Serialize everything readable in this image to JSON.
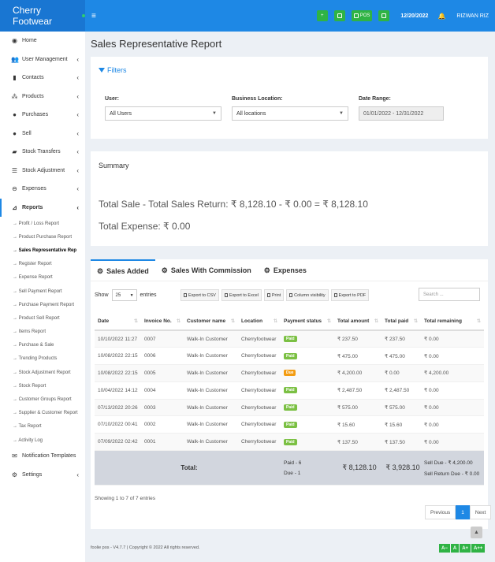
{
  "header": {
    "brand": "Cherry Footwear",
    "menu_icon": "≡",
    "pos_label": "POS",
    "date": "12/20/2022",
    "user": "RIZWAN RIZ"
  },
  "sidebar": {
    "items": [
      {
        "label": "Home",
        "icon": "dashboard-icon"
      },
      {
        "label": "User Management",
        "icon": "users-icon"
      },
      {
        "label": "Contacts",
        "icon": "address-book-icon"
      },
      {
        "label": "Products",
        "icon": "cubes-icon"
      },
      {
        "label": "Purchases",
        "icon": "arrow-circle-icon"
      },
      {
        "label": "Sell",
        "icon": "arrow-circle-up-icon"
      },
      {
        "label": "Stock Transfers",
        "icon": "truck-icon"
      },
      {
        "label": "Stock Adjustment",
        "icon": "database-icon"
      },
      {
        "label": "Expenses",
        "icon": "minus-circle-icon"
      },
      {
        "label": "Reports",
        "icon": "chart-icon"
      }
    ],
    "report_items": [
      "→ Profit / Loss Report",
      "→ Product Purchase Report",
      "→ Sales Representative Rep",
      "→ Register Report",
      "→ Expense Report",
      "→ Sell Payment Report",
      "→ Purchase Payment Report",
      "→ Product Sell Report",
      "→ Items Report",
      "→ Purchase & Sale",
      "→ Trending Products",
      "→ Stock Adjustment Report",
      "→ Stock Report",
      "→ Customer Groups Report",
      "→ Supplier & Customer Report",
      "→ Tax Report",
      "→ Activity Log"
    ],
    "bottom_items": [
      {
        "label": "Notification Templates",
        "icon": "envelope-icon"
      },
      {
        "label": "Settings",
        "icon": "cog-icon"
      }
    ]
  },
  "page": {
    "title": "Sales Representative Report"
  },
  "filters": {
    "title": "Filters",
    "user_label": "User:",
    "user_value": "All Users",
    "location_label": "Business Location:",
    "location_value": "All locations",
    "date_label": "Date Range:",
    "date_value": "01/01/2022 - 12/31/2022"
  },
  "summary": {
    "title": "Summary",
    "line1": "Total Sale - Total Sales Return: ₹ 8,128.10 - ₹ 0.00 = ₹ 8,128.10",
    "line2": "Total Expense: ₹ 0.00"
  },
  "tabs": [
    "Sales Added",
    "Sales With Commission",
    "Expenses"
  ],
  "table_controls": {
    "show": "Show",
    "length": "25",
    "entries": "entries",
    "exports": [
      "Export to CSV",
      "Export to Excel",
      "Print",
      "Column visibility",
      "Export to PDF"
    ],
    "search_placeholder": "Search ..."
  },
  "table": {
    "columns": [
      "Date",
      "Invoice No.",
      "Customer name",
      "Location",
      "Payment status",
      "Total amount",
      "Total paid",
      "Total remaining"
    ],
    "rows": [
      [
        "10/10/2022 11:27",
        "0007",
        "Walk-In Customer",
        "Cherryfootwear",
        "Paid",
        "₹ 237.50",
        "₹ 237.50",
        "₹ 0.00"
      ],
      [
        "10/08/2022 22:15",
        "0006",
        "Walk-In Customer",
        "Cherryfootwear",
        "Paid",
        "₹ 475.00",
        "₹ 475.00",
        "₹ 0.00"
      ],
      [
        "10/08/2022 22:15",
        "0005",
        "Walk-In Customer",
        "Cherryfootwear",
        "Due",
        "₹ 4,200.00",
        "₹ 0.00",
        "₹ 4,200.00"
      ],
      [
        "10/04/2022 14:12",
        "0004",
        "Walk-In Customer",
        "Cherryfootwear",
        "Paid",
        "₹ 2,487.50",
        "₹ 2,487.50",
        "₹ 0.00"
      ],
      [
        "07/13/2022 20:26",
        "0003",
        "Walk-In Customer",
        "Cherryfootwear",
        "Paid",
        "₹ 575.00",
        "₹ 575.00",
        "₹ 0.00"
      ],
      [
        "07/10/2022 00:41",
        "0002",
        "Walk-In Customer",
        "Cherryfootwear",
        "Paid",
        "₹ 15.60",
        "₹ 15.60",
        "₹ 0.00"
      ],
      [
        "07/09/2022 02:42",
        "0001",
        "Walk-In Customer",
        "Cherryfootwear",
        "Paid",
        "₹ 137.50",
        "₹ 137.50",
        "₹ 0.00"
      ]
    ],
    "total": {
      "label": "Total:",
      "paid": "Paid - 6",
      "due": "Due - 1",
      "amount": "₹ 8,128.10",
      "paid_amount": "₹ 3,928.10",
      "sell_due": "Sell Due - ₹ 4,200.00",
      "sell_return_due": "Sell Return Due - ₹ 0.00"
    }
  },
  "pagination": {
    "info": "Showing 1 to 7 of 7 entries",
    "previous": "Previous",
    "current": "1",
    "next": "Next"
  },
  "footer": {
    "text": "foolie pos - V4.7.7 | Copyright © 2022 All rights reserved."
  },
  "font_controls": [
    "A−",
    "A",
    "A+",
    "A++"
  ]
}
